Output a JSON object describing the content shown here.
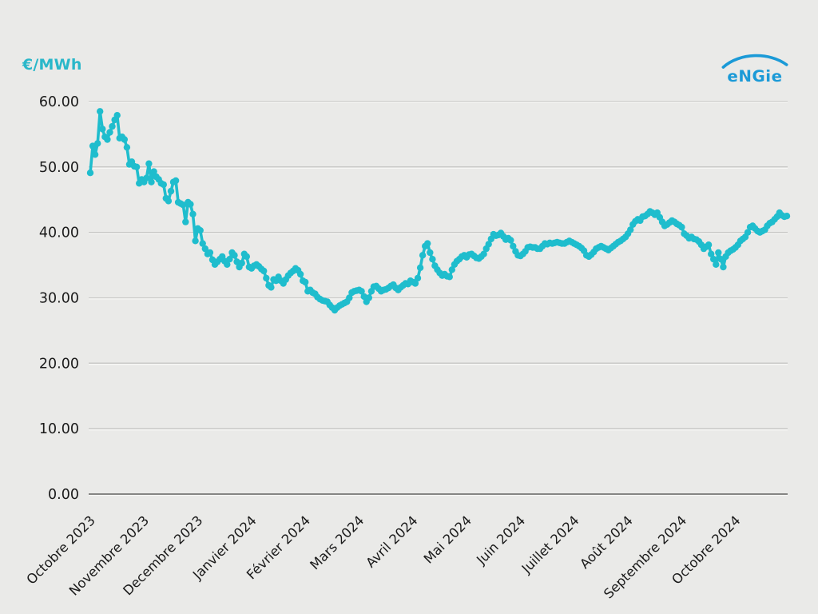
{
  "header": {
    "unit_label": "€/MWh",
    "logo_text": "eNGie"
  },
  "colors": {
    "background": "#EAEAE8",
    "line": "#1FBDCD",
    "unit_label_color": "#29B7C9",
    "grid": "#C9C9C7",
    "grid_highlight": "#F7F7F5",
    "zero_line": "#858583",
    "axis_text": "#1A1A1A",
    "logo_blue": "#1B9AD7"
  },
  "chart_data": {
    "type": "line",
    "title": "",
    "xlabel": "",
    "ylabel": "€/MWh",
    "ylim": [
      0,
      60
    ],
    "grid": "horizontal",
    "legend": "none",
    "marker": "circle",
    "y_tick_values": [
      60,
      50,
      40,
      30,
      20,
      10,
      0
    ],
    "y_tick_labels": [
      "60.00",
      "50.00",
      "40.00",
      "30.00",
      "20.00",
      "10.00",
      "0.00"
    ],
    "categories": [
      "Octobre 2023",
      "Novembre 2023",
      "Decembre 2023",
      "Janvier 2024",
      "Février 2024",
      "Mars 2024",
      "Avril 2024",
      "Mai 2024",
      "Juin 2024",
      "Juillet 2024",
      "Août 2024",
      "Septembre 2024",
      "Octobre 2024"
    ],
    "points_per_month": 22,
    "series": [
      {
        "name": "€/MWh",
        "values": [
          49.1,
          53.2,
          51.9,
          53.6,
          58.5,
          55.8,
          54.6,
          54.2,
          55.3,
          56.2,
          57.2,
          57.9,
          54.4,
          54.6,
          54.2,
          53.0,
          50.4,
          50.8,
          50.1,
          50.0,
          47.5,
          48.1,
          47.7,
          48.3,
          50.5,
          47.7,
          49.3,
          48.5,
          48.1,
          47.5,
          47.3,
          45.2,
          44.8,
          46.3,
          47.7,
          47.9,
          44.6,
          44.4,
          44.2,
          41.6,
          44.6,
          44.3,
          42.8,
          38.7,
          40.6,
          40.3,
          38.3,
          37.5,
          36.7,
          36.9,
          35.8,
          35.1,
          35.5,
          35.9,
          36.3,
          35.6,
          35.1,
          35.9,
          36.9,
          36.5,
          35.5,
          34.7,
          35.3,
          36.7,
          36.3,
          34.7,
          34.5,
          34.9,
          35.1,
          34.8,
          34.4,
          34.1,
          33.0,
          31.9,
          31.6,
          32.8,
          32.6,
          33.2,
          32.6,
          32.2,
          32.8,
          33.4,
          33.8,
          34.1,
          34.5,
          34.2,
          33.6,
          32.6,
          32.4,
          31.0,
          31.2,
          30.8,
          30.6,
          30.1,
          29.8,
          29.6,
          29.5,
          29.4,
          28.9,
          28.5,
          28.1,
          28.5,
          28.8,
          29.0,
          29.2,
          29.4,
          30.0,
          30.8,
          31.0,
          31.1,
          31.2,
          31.0,
          30.2,
          29.4,
          30.0,
          31.0,
          31.7,
          31.8,
          31.4,
          31.0,
          31.2,
          31.3,
          31.5,
          31.8,
          32.0,
          31.5,
          31.2,
          31.6,
          31.9,
          32.2,
          32.1,
          32.6,
          32.4,
          32.2,
          33.0,
          34.6,
          36.5,
          37.9,
          38.3,
          36.9,
          35.9,
          34.9,
          34.3,
          33.8,
          33.4,
          33.6,
          33.3,
          33.2,
          34.3,
          35.1,
          35.6,
          35.9,
          36.3,
          36.5,
          36.2,
          36.6,
          36.7,
          36.4,
          36.1,
          36.0,
          36.3,
          36.7,
          37.5,
          38.2,
          39.0,
          39.7,
          39.5,
          39.6,
          39.9,
          39.4,
          38.9,
          39.1,
          38.8,
          37.9,
          37.1,
          36.5,
          36.4,
          36.7,
          37.1,
          37.7,
          37.8,
          37.7,
          37.7,
          37.5,
          37.5,
          37.9,
          38.3,
          38.2,
          38.4,
          38.3,
          38.4,
          38.5,
          38.4,
          38.3,
          38.3,
          38.5,
          38.7,
          38.5,
          38.3,
          38.1,
          37.9,
          37.6,
          37.2,
          36.5,
          36.3,
          36.6,
          37.0,
          37.5,
          37.7,
          37.9,
          37.7,
          37.5,
          37.3,
          37.6,
          37.9,
          38.2,
          38.5,
          38.7,
          39.0,
          39.3,
          39.8,
          40.4,
          41.2,
          41.7,
          42.0,
          41.8,
          42.4,
          42.5,
          42.8,
          43.2,
          43.0,
          42.7,
          43.0,
          42.3,
          41.6,
          41.0,
          41.2,
          41.5,
          41.8,
          41.6,
          41.3,
          41.1,
          40.8,
          39.8,
          39.5,
          39.1,
          39.3,
          39.0,
          38.9,
          38.6,
          38.1,
          37.5,
          37.8,
          38.1,
          36.7,
          35.9,
          35.1,
          36.9,
          35.9,
          34.7,
          36.3,
          36.9,
          37.2,
          37.4,
          37.7,
          38.1,
          38.7,
          39.0,
          39.3,
          40.0,
          40.8,
          41.0,
          40.6,
          40.2,
          40.0,
          40.2,
          40.4,
          41.0,
          41.4,
          41.6,
          42.0,
          42.4,
          43.0,
          42.6,
          42.4,
          42.5
        ]
      }
    ]
  }
}
